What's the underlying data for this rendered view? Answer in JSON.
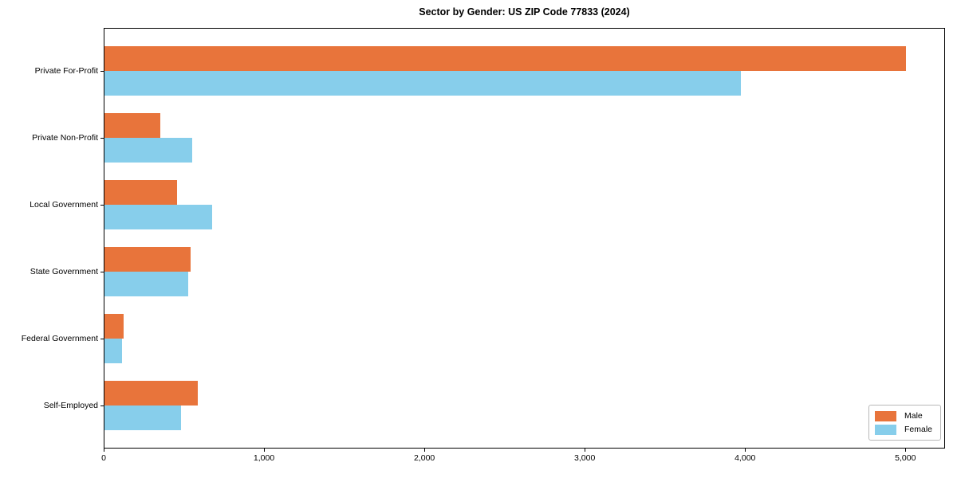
{
  "chart_data": {
    "type": "bar",
    "orientation": "horizontal",
    "title": "Sector by Gender: US ZIP Code 77833 (2024)",
    "categories": [
      "Private For-Profit",
      "Private Non-Profit",
      "Local Government",
      "State Government",
      "Federal Government",
      "Self-Employed"
    ],
    "series": [
      {
        "name": "Male",
        "color": "#e8743b",
        "values": [
          5000,
          350,
          455,
          535,
          120,
          580
        ]
      },
      {
        "name": "Female",
        "color": "#87ceeb",
        "values": [
          3970,
          545,
          670,
          520,
          110,
          475
        ]
      }
    ],
    "xlabel": "",
    "ylabel": "",
    "xlim": [
      0,
      5250
    ],
    "x_ticks": [
      0,
      1000,
      2000,
      3000,
      4000,
      5000
    ],
    "x_tick_labels": [
      "0",
      "1,000",
      "2,000",
      "3,000",
      "4,000",
      "5,000"
    ],
    "grid": false,
    "legend": {
      "position": "lower-right",
      "entries": [
        "Male",
        "Female"
      ]
    },
    "colors": {
      "background": "#ffffff",
      "frame": "#000000",
      "male": "#e8743b",
      "female": "#87ceeb"
    }
  }
}
